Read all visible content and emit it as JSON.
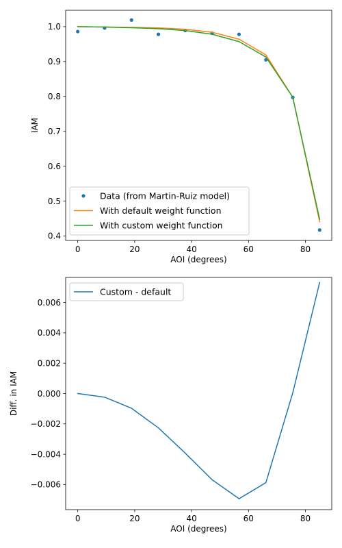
{
  "chart_data": [
    {
      "type": "line",
      "xlabel": "AOI (degrees)",
      "ylabel": "IAM",
      "xlim": [
        -4.25,
        89.25
      ],
      "ylim": [
        0.387,
        1.047
      ],
      "xticks": [
        0,
        20,
        40,
        60,
        80
      ],
      "xtick_labels": [
        "0",
        "20",
        "40",
        "60",
        "80"
      ],
      "yticks": [
        0.4,
        0.5,
        0.6,
        0.7,
        0.8,
        0.9,
        1.0
      ],
      "ytick_labels": [
        "0.4",
        "0.5",
        "0.6",
        "0.7",
        "0.8",
        "0.9",
        "1.0"
      ],
      "grid": false,
      "legend_position": "lower-left",
      "series": [
        {
          "name": "Data (from Martin-Ruiz model)",
          "style": "markers",
          "color": "#1f77b4",
          "x": [
            0,
            9.44,
            18.89,
            28.33,
            37.78,
            47.22,
            56.67,
            66.11,
            75.56,
            85
          ],
          "y": [
            0.986,
            0.996,
            1.019,
            0.978,
            0.989,
            0.981,
            0.978,
            0.905,
            0.797,
            0.417
          ]
        },
        {
          "name": "With default weight function",
          "style": "line",
          "color": "#ff7f0e",
          "x": [
            0,
            9.44,
            18.89,
            28.33,
            37.78,
            47.22,
            56.67,
            66.11,
            75.56,
            85
          ],
          "y": [
            1.0,
            0.9992,
            0.998,
            0.9965,
            0.9925,
            0.984,
            0.964,
            0.919,
            0.7975,
            0.4405
          ]
        },
        {
          "name": "With custom weight function",
          "style": "line",
          "color": "#2ca02c",
          "x": [
            0,
            9.44,
            18.89,
            28.33,
            37.78,
            47.22,
            56.67,
            66.11,
            75.56,
            85
          ],
          "y": [
            1.0,
            0.999,
            0.997,
            0.9943,
            0.9887,
            0.9783,
            0.9571,
            0.9131,
            0.7975,
            0.4478
          ]
        }
      ]
    },
    {
      "type": "line",
      "xlabel": "AOI (degrees)",
      "ylabel": "Diff. in IAM",
      "xlim": [
        -4.25,
        89.25
      ],
      "ylim": [
        -0.00765,
        0.00765
      ],
      "xticks": [
        0,
        20,
        40,
        60,
        80
      ],
      "xtick_labels": [
        "0",
        "20",
        "40",
        "60",
        "80"
      ],
      "yticks": [
        -0.006,
        -0.004,
        -0.002,
        0.0,
        0.002,
        0.004,
        0.006
      ],
      "ytick_labels": [
        "−0.006",
        "−0.004",
        "−0.002",
        "0.000",
        "0.002",
        "0.004",
        "0.006"
      ],
      "grid": false,
      "legend_position": "top-left",
      "series": [
        {
          "name": "Custom - default",
          "style": "line",
          "color": "#1f77b4",
          "x": [
            0,
            9.44,
            18.89,
            28.33,
            37.78,
            47.22,
            56.67,
            66.11,
            75.56,
            85
          ],
          "y": [
            0.0,
            -0.00024,
            -0.00097,
            -0.00226,
            -0.00393,
            -0.00568,
            -0.00693,
            -0.00587,
            5e-05,
            0.00732
          ]
        }
      ]
    }
  ]
}
